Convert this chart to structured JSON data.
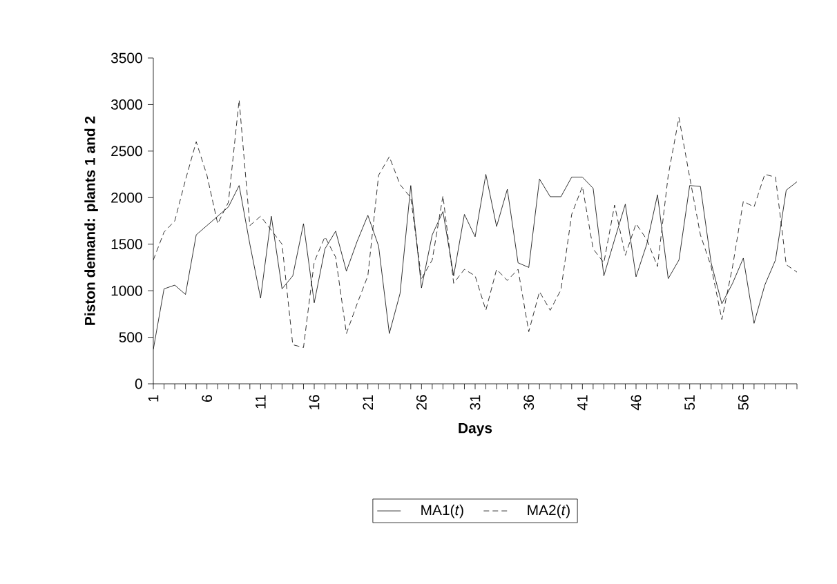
{
  "chart_data": {
    "type": "line",
    "xlabel": "Days",
    "ylabel": "Piston demand: plants 1 and 2",
    "x": [
      1,
      2,
      3,
      4,
      5,
      6,
      7,
      8,
      9,
      10,
      11,
      12,
      13,
      14,
      15,
      16,
      17,
      18,
      19,
      20,
      21,
      22,
      23,
      24,
      25,
      26,
      27,
      28,
      29,
      30,
      31,
      32,
      33,
      34,
      35,
      36,
      37,
      38,
      39,
      40,
      41,
      42,
      43,
      44,
      45,
      46,
      47,
      48,
      49,
      50,
      51,
      52,
      53,
      54,
      55,
      56,
      57,
      58,
      59,
      60,
      61
    ],
    "series": [
      {
        "name": "MA1(*t*)",
        "color": "#000000",
        "line_style": "solid",
        "values": [
          370,
          1020,
          1060,
          960,
          1600,
          1700,
          1800,
          1900,
          2130,
          1500,
          920,
          1800,
          1020,
          1160,
          1720,
          870,
          1450,
          1640,
          1210,
          1530,
          1810,
          1480,
          540,
          970,
          2130,
          1030,
          1600,
          1850,
          1160,
          1820,
          1580,
          2250,
          1690,
          2090,
          1300,
          1250,
          2200,
          2010,
          2010,
          2220,
          2220,
          2100,
          1160,
          1550,
          1930,
          1150,
          1500,
          2030,
          1130,
          1330,
          2130,
          2120,
          1300,
          860,
          1080,
          1350,
          650,
          1060,
          1330,
          2080,
          2170
        ]
      },
      {
        "name": "MA2(*t*)",
        "color": "#000000",
        "line_style": "dashed",
        "values": [
          1330,
          1630,
          1750,
          2190,
          2600,
          2240,
          1720,
          1950,
          3050,
          1700,
          1800,
          1650,
          1500,
          420,
          390,
          1310,
          1580,
          1360,
          540,
          860,
          1160,
          2240,
          2440,
          2140,
          2000,
          1130,
          1330,
          2020,
          1080,
          1230,
          1160,
          790,
          1230,
          1110,
          1230,
          560,
          990,
          790,
          1010,
          1820,
          2120,
          1450,
          1300,
          1920,
          1380,
          1720,
          1550,
          1260,
          2240,
          2860,
          2220,
          1600,
          1260,
          690,
          1260,
          1960,
          1900,
          2250,
          2220,
          1280,
          1200
        ]
      }
    ],
    "xlim": [
      1,
      61
    ],
    "xticks": [
      1,
      {
        "value": 2,
        "label": null
      },
      {
        "value": 3,
        "label": null
      },
      {
        "value": 4,
        "label": null
      },
      {
        "value": 5,
        "label": null
      },
      6,
      {
        "value": 7,
        "label": null
      },
      {
        "value": 8,
        "label": null
      },
      {
        "value": 9,
        "label": null
      },
      {
        "value": 10,
        "label": null
      },
      11,
      {
        "value": 12,
        "label": null
      },
      {
        "value": 13,
        "label": null
      },
      {
        "value": 14,
        "label": null
      },
      {
        "value": 15,
        "label": null
      },
      16,
      {
        "value": 17,
        "label": null
      },
      {
        "value": 18,
        "label": null
      },
      {
        "value": 19,
        "label": null
      },
      {
        "value": 20,
        "label": null
      },
      21,
      {
        "value": 22,
        "label": null
      },
      {
        "value": 23,
        "label": null
      },
      {
        "value": 24,
        "label": null
      },
      {
        "value": 25,
        "label": null
      },
      26,
      {
        "value": 27,
        "label": null
      },
      {
        "value": 28,
        "label": null
      },
      {
        "value": 29,
        "label": null
      },
      {
        "value": 30,
        "label": null
      },
      31,
      {
        "value": 32,
        "label": null
      },
      {
        "value": 33,
        "label": null
      },
      {
        "value": 34,
        "label": null
      },
      {
        "value": 35,
        "label": null
      },
      36,
      {
        "value": 37,
        "label": null
      },
      {
        "value": 38,
        "label": null
      },
      {
        "value": 39,
        "label": null
      },
      {
        "value": 40,
        "label": null
      },
      41,
      {
        "value": 42,
        "label": null
      },
      {
        "value": 43,
        "label": null
      },
      {
        "value": 44,
        "label": null
      },
      {
        "value": 45,
        "label": null
      },
      46,
      {
        "value": 47,
        "label": null
      },
      {
        "value": 48,
        "label": null
      },
      {
        "value": 49,
        "label": null
      },
      {
        "value": 50,
        "label": null
      },
      51,
      {
        "value": 52,
        "label": null
      },
      {
        "value": 53,
        "label": null
      },
      {
        "value": 54,
        "label": null
      },
      {
        "value": 55,
        "label": null
      },
      56,
      {
        "value": 57,
        "label": null
      },
      {
        "value": 58,
        "label": null
      },
      {
        "value": 59,
        "label": null
      },
      {
        "value": 60,
        "label": null
      },
      {
        "value": 61,
        "label": null
      }
    ],
    "ylim": [
      0,
      3500
    ],
    "yticks": [
      0,
      500,
      1000,
      1500,
      2000,
      2500,
      3000,
      3500
    ],
    "grid": false,
    "legend": "bottom",
    "marker": "none"
  }
}
